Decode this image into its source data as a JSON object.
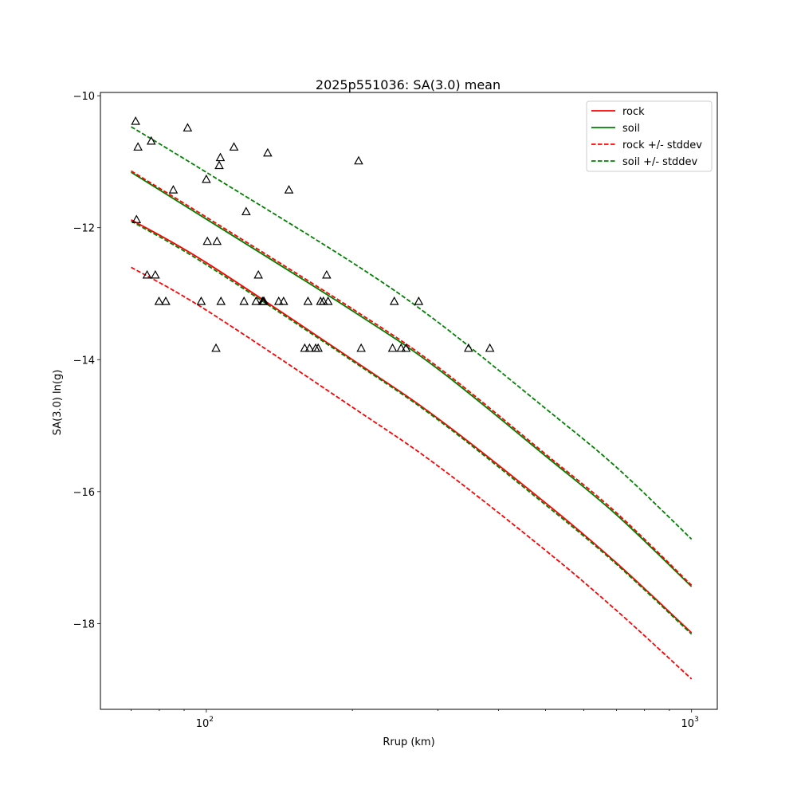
{
  "colors": {
    "rock": "#ff0000",
    "soil": "#008000",
    "marker": "#000000"
  },
  "chart_data": {
    "type": "line",
    "title": "2025p551036: SA(3.0) mean",
    "xlabel": "Rrup (km)",
    "ylabel": "SA(3.0) ln(g)",
    "x_scale": "log",
    "xlim": [
      60.5,
      1130
    ],
    "ylim": [
      -19.3,
      -9.95
    ],
    "grid": false,
    "legend_position": "top-right",
    "x_ticks": [
      {
        "value": 100,
        "base": "10",
        "exp": "2"
      },
      {
        "value": 1000,
        "base": "10",
        "exp": "3"
      }
    ],
    "x_minor_ticks": [
      70,
      80,
      90,
      200,
      300,
      400,
      500,
      600,
      700,
      800,
      900
    ],
    "y_ticks": [
      {
        "value": -18,
        "label": "−18"
      },
      {
        "value": -16,
        "label": "−16"
      },
      {
        "value": -14,
        "label": "−14"
      },
      {
        "value": -12,
        "label": "−12"
      },
      {
        "value": -10,
        "label": "−10"
      }
    ],
    "series": [
      {
        "name": "rock",
        "style": "solid",
        "color": "#ff0000",
        "x": [
          70,
          100,
          200,
          300,
          500,
          700,
          1000
        ],
        "y": [
          -11.88,
          -12.53,
          -14.0,
          -14.89,
          -16.17,
          -17.08,
          -18.14
        ]
      },
      {
        "name": "soil",
        "style": "solid",
        "color": "#008000",
        "x": [
          70,
          100,
          200,
          300,
          500,
          700,
          1000
        ],
        "y": [
          -11.16,
          -11.87,
          -13.26,
          -14.14,
          -15.46,
          -16.35,
          -17.44
        ]
      },
      {
        "name": "rock +/- stddev",
        "style": "dashed",
        "color": "#ff0000",
        "x": [
          70,
          100,
          200,
          300,
          500,
          700,
          1000
        ],
        "y": [
          -11.14,
          -11.84,
          -13.23,
          -14.11,
          -15.43,
          -16.32,
          -17.42
        ]
      },
      {
        "name": "rock +/- stddev",
        "style": "dashed",
        "color": "#ff0000",
        "legend": false,
        "x": [
          70,
          100,
          200,
          300,
          500,
          700,
          1000
        ],
        "y": [
          -12.6,
          -13.25,
          -14.72,
          -15.61,
          -16.89,
          -17.8,
          -18.84
        ]
      },
      {
        "name": "soil +/- stddev",
        "style": "dashed",
        "color": "#008000",
        "x": [
          70,
          100,
          200,
          300,
          500,
          700,
          1000
        ],
        "y": [
          -10.47,
          -11.16,
          -12.53,
          -13.43,
          -14.74,
          -15.63,
          -16.72
        ]
      },
      {
        "name": "soil +/- stddev",
        "style": "dashed",
        "color": "#008000",
        "legend": false,
        "x": [
          70,
          100,
          200,
          300,
          500,
          700,
          1000
        ],
        "y": [
          -11.9,
          -12.56,
          -14.02,
          -14.91,
          -16.2,
          -17.1,
          -18.16
        ]
      }
    ],
    "observations": {
      "marker": "triangle",
      "x": [
        71.5,
        72.3,
        71.8,
        75.5,
        77.0,
        78.5,
        79.9,
        82.5,
        85.5,
        91.5,
        97.6,
        100,
        100.5,
        104.7,
        105.2,
        106.3,
        106.9,
        107.2,
        114,
        119.6,
        120.8,
        126.6,
        128,
        130.5,
        131.1,
        131.5,
        133.8,
        141.0,
        144.3,
        148,
        159.5,
        162,
        163.2,
        168,
        170,
        172,
        174.3,
        177,
        178.2,
        206,
        208.5,
        242,
        244,
        252,
        258,
        274,
        347,
        384
      ],
      "y": [
        -10.39,
        -10.78,
        -11.88,
        -12.72,
        -10.69,
        -12.72,
        -13.12,
        -13.12,
        -11.43,
        -10.49,
        -13.12,
        -11.27,
        -12.21,
        -13.83,
        -12.21,
        -11.06,
        -10.94,
        -13.12,
        -10.78,
        -13.12,
        -11.76,
        -13.12,
        -12.72,
        -13.12,
        -13.12,
        -13.12,
        -10.87,
        -13.12,
        -13.12,
        -11.43,
        -13.83,
        -13.12,
        -13.83,
        -13.83,
        -13.83,
        -13.12,
        -13.12,
        -12.72,
        -13.12,
        -10.99,
        -13.83,
        -13.83,
        -13.12,
        -13.83,
        -13.83,
        -13.12,
        -13.83,
        -13.83
      ]
    }
  }
}
